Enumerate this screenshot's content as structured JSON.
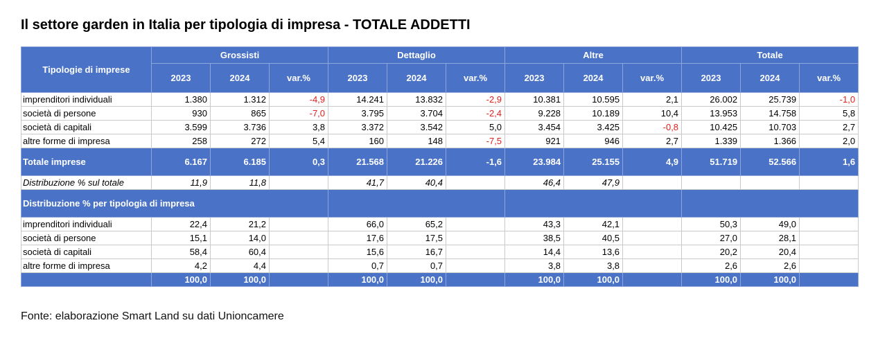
{
  "title": "Il settore garden in Italia per tipologia di impresa - TOTALE ADDETTI",
  "table": {
    "corner": "Tipologie di imprese",
    "groups": [
      {
        "name": "Grossisti",
        "columns": [
          "2023",
          "2024",
          "var.%"
        ]
      },
      {
        "name": "Dettaglio",
        "columns": [
          "2023",
          "2024",
          "var.%"
        ]
      },
      {
        "name": "Altre",
        "columns": [
          "2023",
          "2024",
          "var.%"
        ]
      },
      {
        "name": "Totale",
        "columns": [
          "2023",
          "2024",
          "var.%"
        ]
      }
    ],
    "rows": [
      {
        "label": "imprenditori individuali",
        "cells": [
          "1.380",
          "1.312",
          "-4,9",
          "14.241",
          "13.832",
          "-2,9",
          "10.381",
          "10.595",
          "2,1",
          "26.002",
          "25.739",
          "-1,0"
        ]
      },
      {
        "label": "società di persone",
        "cells": [
          "930",
          "865",
          "-7,0",
          "3.795",
          "3.704",
          "-2,4",
          "9.228",
          "10.189",
          "10,4",
          "13.953",
          "14.758",
          "5,8"
        ]
      },
      {
        "label": "società di capitali",
        "cells": [
          "3.599",
          "3.736",
          "3,8",
          "3.372",
          "3.542",
          "5,0",
          "3.454",
          "3.425",
          "-0,8",
          "10.425",
          "10.703",
          "2,7"
        ]
      },
      {
        "label": "altre forme di impresa",
        "cells": [
          "258",
          "272",
          "5,4",
          "160",
          "148",
          "-7,5",
          "921",
          "946",
          "2,7",
          "1.339",
          "1.366",
          "2,0"
        ]
      }
    ],
    "total": {
      "label": "Totale imprese",
      "cells": [
        "6.167",
        "6.185",
        "0,3",
        "21.568",
        "21.226",
        "-1,6",
        "23.984",
        "25.155",
        "4,9",
        "51.719",
        "52.566",
        "1,6"
      ]
    },
    "share": {
      "label": "Distribuzione % sul totale",
      "cells": [
        "11,9",
        "11,8",
        null,
        "41,7",
        "40,4",
        null,
        "46,4",
        "47,9",
        null,
        null,
        null,
        null
      ]
    },
    "breakdown": {
      "title": "Distribuzione % per tipologia di impresa",
      "rows": [
        {
          "label": "imprenditori individuali",
          "cells": [
            "22,4",
            "21,2",
            null,
            "66,0",
            "65,2",
            null,
            "43,3",
            "42,1",
            null,
            "50,3",
            "49,0",
            null
          ]
        },
        {
          "label": "società di persone",
          "cells": [
            "15,1",
            "14,0",
            null,
            "17,6",
            "17,5",
            null,
            "38,5",
            "40,5",
            null,
            "27,0",
            "28,1",
            null
          ]
        },
        {
          "label": "società di capitali",
          "cells": [
            "58,4",
            "60,4",
            null,
            "15,6",
            "16,7",
            null,
            "14,4",
            "13,6",
            null,
            "20,2",
            "20,4",
            null
          ]
        },
        {
          "label": "altre forme di impresa",
          "cells": [
            "4,2",
            "4,4",
            null,
            "0,7",
            "0,7",
            null,
            "3,8",
            "3,8",
            null,
            "2,6",
            "2,6",
            null
          ]
        }
      ],
      "total": {
        "cells": [
          "100,0",
          "100,0",
          null,
          "100,0",
          "100,0",
          null,
          "100,0",
          "100,0",
          null,
          "100,0",
          "100,0",
          null
        ]
      }
    }
  },
  "source": "Fonte: elaborazione Smart Land su dati Unioncamere"
}
